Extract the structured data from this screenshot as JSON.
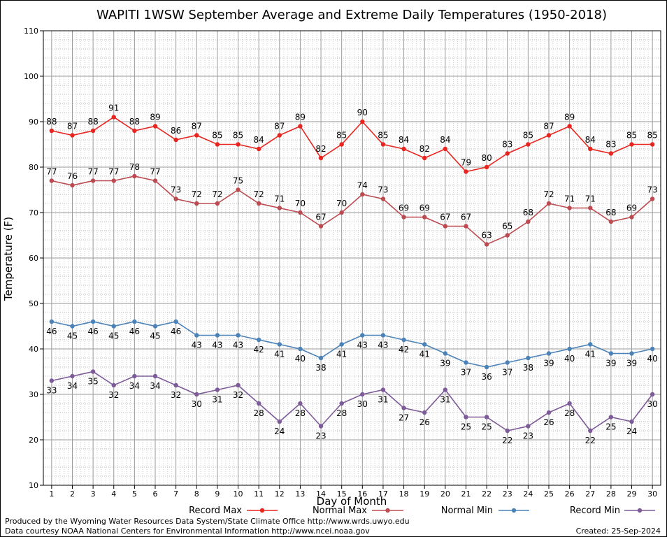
{
  "chart_data": {
    "type": "line",
    "title": "WAPITI 1WSW September Average and Extreme Daily Temperatures (1950-2018)",
    "xlabel": "Day of Month",
    "ylabel": "Temperature (F)",
    "ylim": [
      10,
      110
    ],
    "xlim": [
      0.6,
      30.4
    ],
    "yticks": [
      10,
      20,
      30,
      40,
      50,
      60,
      70,
      80,
      90,
      100,
      110
    ],
    "x": [
      1,
      2,
      3,
      4,
      5,
      6,
      7,
      8,
      9,
      10,
      11,
      12,
      13,
      14,
      15,
      16,
      17,
      18,
      19,
      20,
      21,
      22,
      23,
      24,
      25,
      26,
      27,
      28,
      29,
      30
    ],
    "grid": true,
    "legend_position": "bottom",
    "series": [
      {
        "name": "Record Max",
        "color": "#e8251f",
        "label_position": "above",
        "values": [
          88,
          87,
          88,
          91,
          88,
          89,
          86,
          87,
          85,
          85,
          84,
          87,
          89,
          82,
          85,
          90,
          85,
          84,
          82,
          84,
          79,
          80,
          83,
          85,
          87,
          89,
          84,
          83,
          85,
          85
        ]
      },
      {
        "name": "Normal Max",
        "color": "#bc4b51",
        "label_position": "above",
        "values": [
          77,
          76,
          77,
          77,
          78,
          77,
          73,
          72,
          72,
          75,
          72,
          71,
          70,
          67,
          70,
          74,
          73,
          69,
          69,
          67,
          67,
          63,
          65,
          68,
          72,
          71,
          71,
          68,
          69,
          73
        ]
      },
      {
        "name": "Normal Min",
        "color": "#4b82b8",
        "label_position": "below",
        "values": [
          46,
          45,
          46,
          45,
          46,
          45,
          46,
          43,
          43,
          43,
          42,
          41,
          40,
          38,
          41,
          43,
          43,
          42,
          41,
          39,
          37,
          36,
          37,
          38,
          39,
          40,
          41,
          39,
          39,
          40
        ]
      },
      {
        "name": "Record Min",
        "color": "#7d5a98",
        "label_position": "below",
        "values": [
          33,
          34,
          35,
          32,
          34,
          34,
          32,
          30,
          31,
          32,
          28,
          24,
          28,
          23,
          28,
          30,
          31,
          27,
          26,
          31,
          25,
          25,
          22,
          23,
          26,
          28,
          22,
          25,
          24,
          30
        ]
      }
    ]
  },
  "footer": {
    "line1": "Produced by the Wyoming Water Resources Data System/State Climate Office http://www.wrds.uwyo.edu",
    "line2": "Data courtesy NOAA National Centers for Environmental Information http://www.ncei.noaa.gov",
    "created": "Created:  25-Sep-2024"
  }
}
